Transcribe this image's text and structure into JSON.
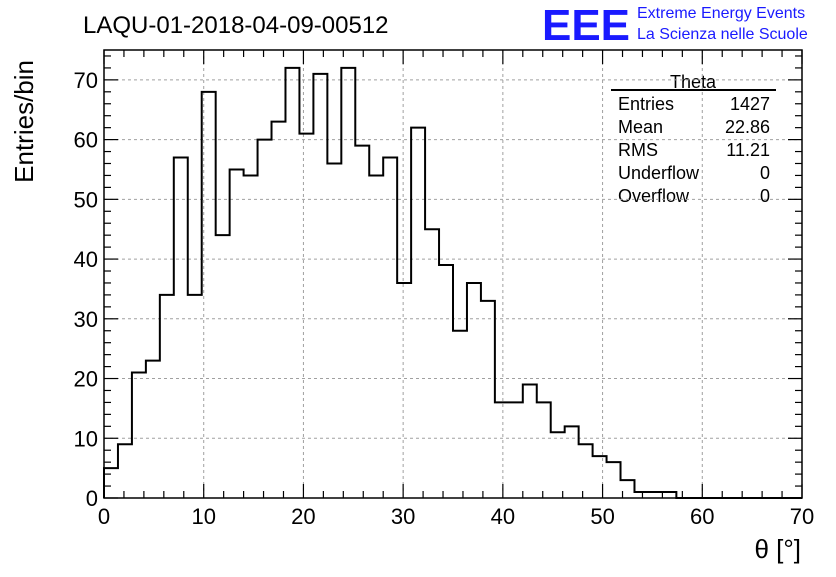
{
  "chart_data": {
    "type": "histogram",
    "title": "LAQU-01-2018-04-09-00512",
    "xlabel": "θ [°]",
    "ylabel": "Entries/bin",
    "xlim": [
      0,
      70
    ],
    "ylim": [
      0,
      75
    ],
    "xticks": [
      0,
      10,
      20,
      30,
      40,
      50,
      60,
      70
    ],
    "yticks": [
      0,
      10,
      20,
      30,
      40,
      50,
      60,
      70
    ],
    "grid": true,
    "bin_width": 1.4,
    "bin_start": 0,
    "values": [
      5,
      9,
      21,
      23,
      34,
      57,
      34,
      68,
      44,
      55,
      54,
      60,
      63,
      72,
      61,
      71,
      56,
      72,
      59,
      54,
      57,
      36,
      62,
      45,
      39,
      28,
      36,
      33,
      16,
      16,
      19,
      16,
      11,
      12,
      9,
      7,
      6,
      3,
      1,
      1,
      1,
      0,
      0,
      0,
      0,
      0,
      0,
      0,
      0,
      0
    ],
    "stats_box": {
      "name": "Theta",
      "rows": [
        {
          "label": "Entries",
          "value": "1427"
        },
        {
          "label": "Mean",
          "value": "22.86"
        },
        {
          "label": "RMS",
          "value": "11.21"
        },
        {
          "label": "Underflow",
          "value": "0"
        },
        {
          "label": "Overflow",
          "value": "0"
        }
      ]
    }
  },
  "branding": {
    "logo_text": "EEE",
    "line1": "Extreme Energy Events",
    "line2": "La Scienza nelle Scuole",
    "color": "#1a1aff"
  },
  "colors": {
    "histogram": "#000000",
    "grid": "#a0a0a0"
  }
}
